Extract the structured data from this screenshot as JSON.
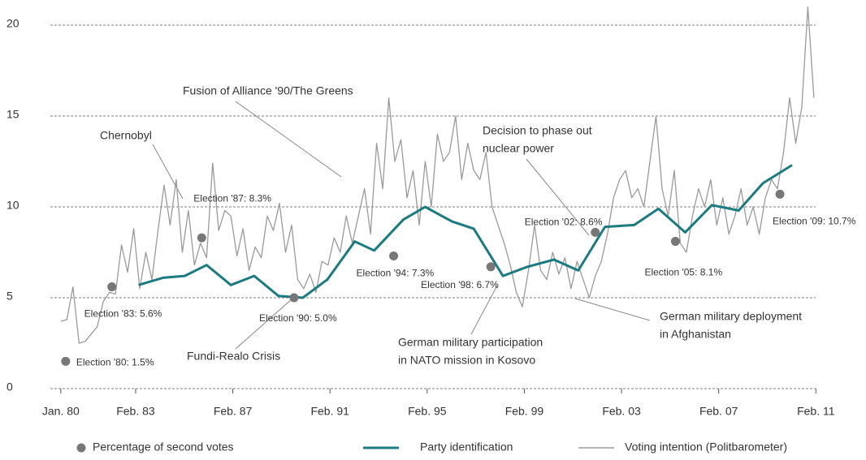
{
  "chart_data": {
    "type": "line",
    "xlim": [
      1979.57,
      2011.07
    ],
    "ylim": [
      0,
      21.4
    ],
    "yticks": [
      0,
      5,
      10,
      15,
      20
    ],
    "xticks": [
      {
        "value": 1980.0,
        "label": "Jan. 80"
      },
      {
        "value": 1983.08,
        "label": "Feb. 83"
      },
      {
        "value": 1987.08,
        "label": "Feb. 87"
      },
      {
        "value": 1991.08,
        "label": "Feb. 91"
      },
      {
        "value": 1995.08,
        "label": "Feb. 95"
      },
      {
        "value": 1999.08,
        "label": "Feb. 99"
      },
      {
        "value": 2003.08,
        "label": "Feb. 03"
      },
      {
        "value": 2007.08,
        "label": "Feb. 07"
      },
      {
        "value": 2011.08,
        "label": "Feb. 11"
      }
    ],
    "grid": true,
    "series": [
      {
        "name": "Percentage of second votes",
        "style": "dot",
        "color": "#777777",
        "x": [
          1980.2,
          1982.1,
          1985.8,
          1989.6,
          1993.7,
          1997.7,
          2002.0,
          2005.3,
          2009.6
        ],
        "values": [
          1.5,
          5.6,
          8.3,
          5.0,
          7.3,
          6.7,
          8.6,
          8.1,
          10.7
        ],
        "value_labels": [
          "Election '80: 1.5%",
          "Election '83: 5.6%",
          "Election '87: 8.3%",
          "Election '90: 5.0%",
          "Election '94: 7.3%",
          "Election '98: 6.7%",
          "Election '02: 8.6%",
          "Election '05: 8.1%",
          "Election '09: 10.7%"
        ]
      },
      {
        "name": "Party identification",
        "style": "line",
        "color": "#1b7b80",
        "x": [
          1983.2,
          1984.2,
          1985.1,
          1986.0,
          1987.0,
          1987.96,
          1988.96,
          1989.96,
          1990.97,
          1992.1,
          1992.9,
          1994.1,
          1995.0,
          1996.1,
          1997.0,
          1998.2,
          1999.2,
          2000.3,
          2001.3,
          2002.4,
          2003.6,
          2004.6,
          2005.7,
          2006.8,
          2007.9,
          2008.9,
          2010.1
        ],
        "values": [
          5.7,
          6.1,
          6.2,
          6.8,
          5.7,
          6.2,
          5.1,
          5.0,
          6.0,
          8.1,
          7.6,
          9.3,
          10.0,
          9.2,
          8.8,
          6.2,
          6.7,
          7.1,
          6.5,
          8.9,
          9.0,
          9.9,
          8.6,
          10.1,
          9.8,
          11.3,
          12.3
        ]
      },
      {
        "name": "Voting intention (Politbarometer)",
        "style": "thin",
        "color": "#9a9a9a",
        "x": [
          1980,
          1980.25,
          1980.5,
          1980.75,
          1981,
          1981.25,
          1981.5,
          1981.75,
          1982,
          1982.25,
          1982.5,
          1982.75,
          1983,
          1983.25,
          1983.5,
          1983.75,
          1984,
          1984.25,
          1984.5,
          1984.75,
          1985,
          1985.25,
          1985.5,
          1985.75,
          1986,
          1986.25,
          1986.5,
          1986.75,
          1987,
          1987.25,
          1987.5,
          1987.75,
          1988,
          1988.25,
          1988.5,
          1988.75,
          1989,
          1989.25,
          1989.5,
          1989.75,
          1990,
          1990.25,
          1990.5,
          1990.75,
          1991,
          1991.25,
          1991.5,
          1991.75,
          1992,
          1992.25,
          1992.5,
          1992.75,
          1993,
          1993.25,
          1993.5,
          1993.75,
          1994,
          1994.25,
          1994.5,
          1994.75,
          1995,
          1995.25,
          1995.5,
          1995.75,
          1996,
          1996.25,
          1996.5,
          1996.75,
          1997,
          1997.25,
          1997.5,
          1997.75,
          1998,
          1998.25,
          1998.5,
          1998.75,
          1999,
          1999.25,
          1999.5,
          1999.75,
          2000,
          2000.25,
          2000.5,
          2000.75,
          2001,
          2001.25,
          2001.5,
          2001.75,
          2002,
          2002.25,
          2002.5,
          2002.75,
          2003,
          2003.25,
          2003.5,
          2003.75,
          2004,
          2004.25,
          2004.5,
          2004.75,
          2005,
          2005.25,
          2005.5,
          2005.75,
          2006,
          2006.25,
          2006.5,
          2006.75,
          2007,
          2007.25,
          2007.5,
          2007.75,
          2008,
          2008.25,
          2008.5,
          2008.75,
          2009,
          2009.25,
          2009.5,
          2009.75,
          2010,
          2010.25,
          2010.5,
          2010.75,
          2011
        ],
        "values": [
          3.7,
          3.8,
          5.6,
          2.5,
          2.6,
          3.0,
          3.4,
          4.8,
          5.3,
          5.2,
          7.9,
          6.4,
          8.8,
          5.5,
          7.5,
          6.0,
          8.7,
          11.2,
          9.0,
          11.5,
          7.5,
          9.8,
          6.8,
          8.0,
          7.2,
          12.4,
          8.7,
          9.8,
          9.5,
          7.3,
          8.8,
          6.5,
          7.8,
          7.2,
          9.5,
          8.7,
          10.2,
          7.5,
          9.0,
          6.0,
          5.5,
          6.3,
          5.3,
          7.0,
          6.8,
          8.3,
          7.5,
          9.5,
          8.0,
          9.5,
          11.0,
          8.5,
          13.5,
          11.0,
          16.0,
          12.5,
          13.7,
          10.5,
          12.0,
          9.0,
          12.5,
          10.0,
          14.0,
          12.5,
          13.0,
          15.0,
          11.5,
          13.5,
          12.0,
          11.5,
          13.0,
          10.0,
          9.0,
          8.0,
          6.8,
          5.3,
          4.5,
          6.5,
          9.0,
          6.5,
          6.0,
          7.5,
          6.3,
          7.2,
          5.5,
          7.0,
          6.0,
          5.0,
          6.2,
          7.0,
          8.5,
          10.5,
          11.5,
          12.0,
          10.5,
          11.0,
          10.0,
          12.5,
          15.0,
          11.0,
          9.5,
          12.0,
          8.0,
          7.5,
          9.5,
          11.0,
          10.0,
          11.5,
          9.0,
          10.5,
          8.5,
          9.5,
          11.0,
          9.0,
          10.0,
          8.5,
          10.5,
          11.5,
          11.0,
          13.0,
          16.0,
          13.5,
          15.5,
          21.0,
          16.0
        ]
      }
    ],
    "annotations": [
      {
        "lines": [
          "Chernobyl"
        ]
      },
      {
        "lines": [
          "Fusion of Alliance '90/The Greens"
        ]
      },
      {
        "lines": [
          "Decision to phase out",
          "nuclear power"
        ]
      },
      {
        "lines": [
          "Fundi-Realo Crisis"
        ]
      },
      {
        "lines": [
          "German military participation",
          "in NATO mission in Kosovo"
        ]
      },
      {
        "lines": [
          "German military deployment",
          "in Afghanistan"
        ]
      }
    ]
  }
}
